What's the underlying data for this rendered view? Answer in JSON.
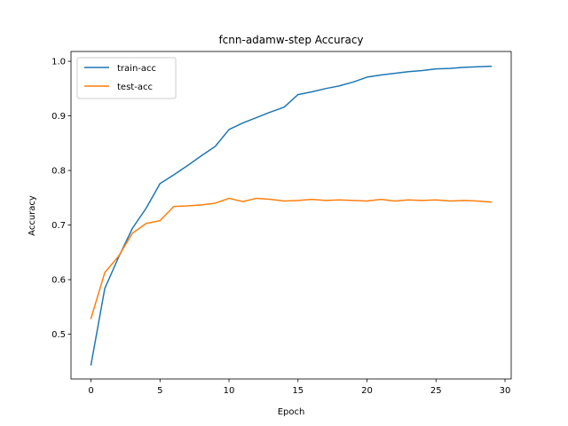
{
  "chart_data": {
    "type": "line",
    "title": "fcnn-adamw-step Accuracy",
    "xlabel": "Epoch",
    "ylabel": "Accuracy",
    "xlim": [
      -1.45,
      30.45
    ],
    "ylim": [
      0.418,
      1.018
    ],
    "xticks": [
      0,
      5,
      10,
      15,
      20,
      25,
      30
    ],
    "yticks": [
      0.5,
      0.6,
      0.7,
      0.8,
      0.9,
      1.0
    ],
    "ytick_labels": [
      "0.5",
      "0.6",
      "0.7",
      "0.8",
      "0.9",
      "1.0"
    ],
    "grid": false,
    "legend_position": "upper-left",
    "x": [
      0,
      1,
      2,
      3,
      4,
      5,
      6,
      7,
      8,
      9,
      10,
      11,
      12,
      13,
      14,
      15,
      16,
      17,
      18,
      19,
      20,
      21,
      22,
      23,
      24,
      25,
      26,
      27,
      28,
      29
    ],
    "series": [
      {
        "name": "train-acc",
        "color": "#1f77b4",
        "values": [
          0.444,
          0.584,
          0.641,
          0.694,
          0.731,
          0.776,
          0.792,
          0.809,
          0.827,
          0.844,
          0.875,
          0.887,
          0.897,
          0.907,
          0.916,
          0.939,
          0.944,
          0.95,
          0.955,
          0.962,
          0.971,
          0.975,
          0.978,
          0.981,
          0.983,
          0.986,
          0.987,
          0.989,
          0.99,
          0.991
        ]
      },
      {
        "name": "test-acc",
        "color": "#ff7f0e",
        "values": [
          0.529,
          0.613,
          0.643,
          0.685,
          0.703,
          0.708,
          0.734,
          0.735,
          0.737,
          0.74,
          0.749,
          0.743,
          0.749,
          0.747,
          0.744,
          0.745,
          0.747,
          0.745,
          0.746,
          0.745,
          0.744,
          0.747,
          0.744,
          0.746,
          0.745,
          0.746,
          0.744,
          0.745,
          0.744,
          0.742
        ]
      }
    ]
  }
}
